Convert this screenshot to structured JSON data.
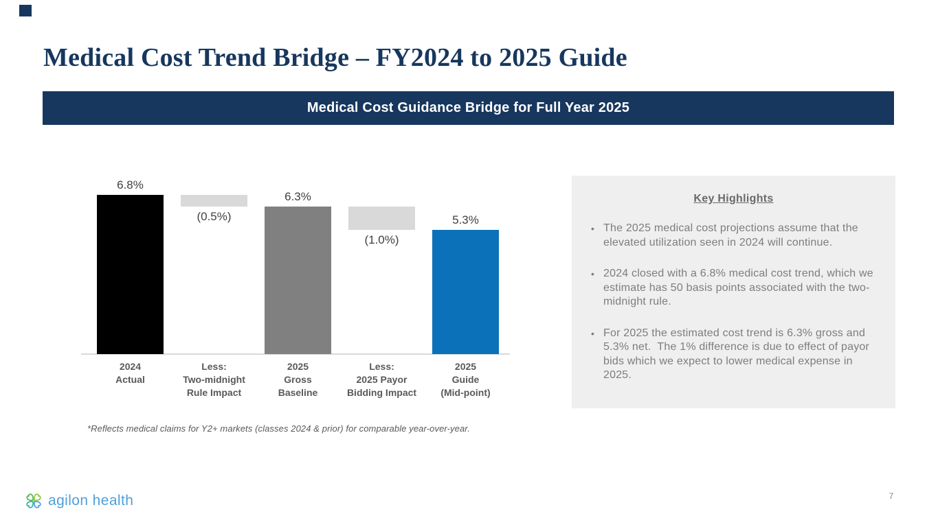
{
  "slide": {
    "title": "Medical Cost Trend Bridge – FY2024 to 2025 Guide",
    "banner": "Medical Cost Guidance Bridge for Full Year 2025",
    "footnote": "*Reflects medical claims for Y2+ markets (classes 2024 & prior) for comparable year-over-year.",
    "page_number": "7"
  },
  "logo": {
    "text": "agilon health",
    "icon": "pinwheel-hearts-icon",
    "text_color": "#4f9fd9",
    "petal_colors": [
      "#8dc63f",
      "#4a9fd8",
      "#2cb5a2",
      "#52b848"
    ]
  },
  "colors": {
    "navy": "#17375e",
    "bar_black": "#000000",
    "bar_gray": "#808080",
    "bar_light_gray": "#d9d9d9",
    "bar_blue": "#0b72b9",
    "axis": "#d9d9d9",
    "panel_bg": "#efefef",
    "panel_text": "#7d7d7d",
    "label_text": "#3f3f3f",
    "category_text": "#595959"
  },
  "chart_data": {
    "type": "bar",
    "subtype": "waterfall",
    "title": "Medical Cost Guidance Bridge for Full Year 2025",
    "xlabel": "",
    "ylabel": "",
    "unit": "percent",
    "ylim": [
      0,
      7.8
    ],
    "grid": false,
    "legend": "none",
    "bars": [
      {
        "kind": "total",
        "value": 6.8,
        "display": "6.8%",
        "color": "#000000",
        "label_lines": [
          "2024",
          "Actual"
        ]
      },
      {
        "kind": "delta",
        "from": 6.8,
        "to": 6.3,
        "value": -0.5,
        "display": "(0.5%)",
        "color": "#d9d9d9",
        "label_lines": [
          "Less:",
          "Two-midnight",
          "Rule Impact"
        ]
      },
      {
        "kind": "total",
        "value": 6.3,
        "display": "6.3%",
        "color": "#808080",
        "label_lines": [
          "2025",
          "Gross",
          "Baseline"
        ]
      },
      {
        "kind": "delta",
        "from": 6.3,
        "to": 5.3,
        "value": -1.0,
        "display": "(1.0%)",
        "color": "#d9d9d9",
        "label_lines": [
          "Less:",
          "2025 Payor",
          "Bidding Impact"
        ]
      },
      {
        "kind": "total",
        "value": 5.3,
        "display": "5.3%",
        "color": "#0b72b9",
        "label_lines": [
          "2025",
          "Guide",
          "(Mid-point)"
        ]
      }
    ]
  },
  "highlights": {
    "title": "Key Highlights",
    "bullets": [
      "The 2025 medical cost projections assume that the elevated utilization seen in 2024 will continue.",
      "2024 closed with a 6.8% medical cost trend, which we estimate has 50 basis points associated with the two-midnight rule.",
      "For 2025 the estimated cost trend is 6.3% gross and 5.3% net.  The 1% difference is due to effect of payor bids which we expect to lower medical expense in 2025."
    ]
  }
}
